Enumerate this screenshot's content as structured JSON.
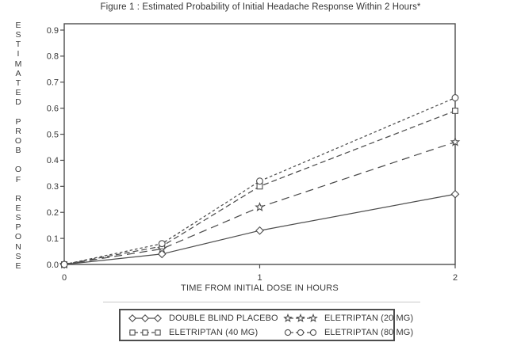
{
  "chart_data": {
    "type": "line",
    "title": "Figure 1 : Estimated Probability of Initial Headache Response Within 2 Hours*",
    "xlabel": "TIME FROM INITIAL DOSE IN HOURS",
    "ylabel": "ESTIMATED PROB OF RESPONSE",
    "x": [
      0,
      0.5,
      1,
      2
    ],
    "xlim": [
      0,
      2
    ],
    "ylim": [
      0,
      0.9
    ],
    "xticks": {
      "values": [
        0,
        1,
        2
      ],
      "labels": [
        "0",
        "1",
        "2"
      ]
    },
    "yticks": {
      "values": [
        0.0,
        0.1,
        0.2,
        0.3,
        0.4,
        0.5,
        0.6,
        0.7,
        0.8,
        0.9
      ],
      "labels": [
        "0.0",
        "0.1",
        "0.2",
        "0.3",
        "0.4",
        "0.5",
        "0.6",
        "0.7",
        "0.8",
        "0.9"
      ]
    },
    "grid": false,
    "legend_position": "bottom",
    "series": [
      {
        "name": "DOUBLE BLIND PLACEBO",
        "marker": "diamond",
        "linestyle": "solid",
        "values": [
          0.0,
          0.04,
          0.13,
          0.27
        ]
      },
      {
        "name": "ELETRIPTAN (20 MG)",
        "marker": "star",
        "linestyle": "long-dash",
        "values": [
          0.0,
          0.06,
          0.22,
          0.47
        ]
      },
      {
        "name": "ELETRIPTAN (40 MG)",
        "marker": "square",
        "linestyle": "medium-dash",
        "values": [
          0.0,
          0.07,
          0.3,
          0.59
        ]
      },
      {
        "name": "ELETRIPTAN (80 MG)",
        "marker": "circle",
        "linestyle": "short-dash",
        "values": [
          0.0,
          0.08,
          0.32,
          0.64
        ]
      }
    ]
  },
  "colors": {
    "background": "#ffffff",
    "text": "#3a3a3a",
    "line": "#4d4d4d",
    "legend_border": "#4d4d4d",
    "separator": "#c9c9c9"
  }
}
